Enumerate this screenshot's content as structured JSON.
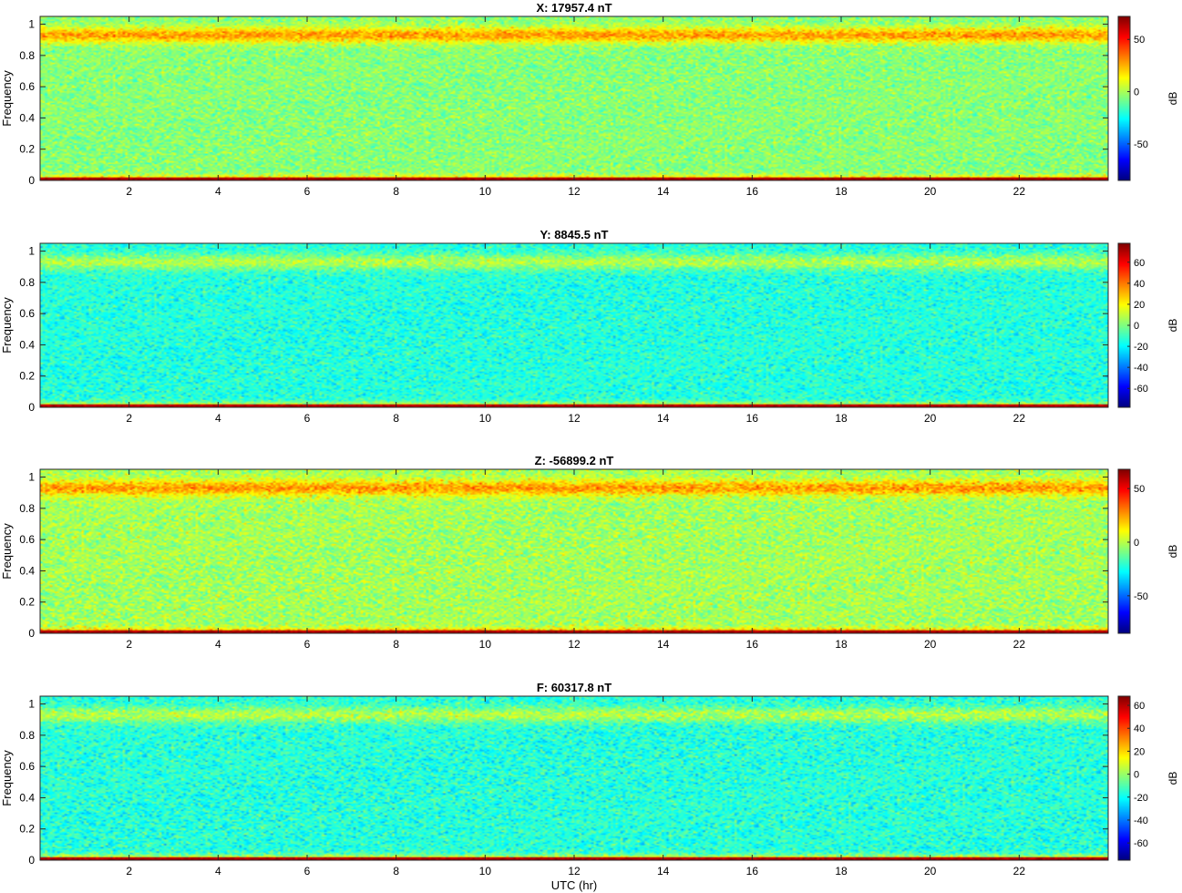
{
  "figure": {
    "xlabel": "UTC (hr)",
    "colormap": "jet",
    "x_ticks": [
      2,
      4,
      6,
      8,
      10,
      12,
      14,
      16,
      18,
      20,
      22
    ]
  },
  "chart_data": [
    {
      "type": "heatmap",
      "title": "X: 17957.4 nT",
      "ylabel": "Frequency",
      "xlim": [
        0,
        24
      ],
      "ylim": [
        0,
        1.05
      ],
      "y_ticks": [
        "0",
        "0.2",
        "0.4",
        "0.6",
        "0.8",
        "1"
      ],
      "colorbar": {
        "label": "dB",
        "range": [
          -85,
          72
        ],
        "ticks": [
          -50,
          0,
          50
        ]
      },
      "levels": {
        "background_db": -5,
        "noise_spread_db": 13,
        "band_0_9_db": 28,
        "dc_line_db": 70,
        "low_freq_db": 30
      }
    },
    {
      "type": "heatmap",
      "title": "Y: 8845.5 nT",
      "ylabel": "Frequency",
      "xlim": [
        0,
        24
      ],
      "ylim": [
        0,
        1.05
      ],
      "y_ticks": [
        "0",
        "0.2",
        "0.4",
        "0.6",
        "0.8",
        "1"
      ],
      "colorbar": {
        "label": "dB",
        "range": [
          -78,
          78
        ],
        "ticks": [
          -60,
          -40,
          -20,
          0,
          20,
          40,
          60
        ]
      },
      "levels": {
        "background_db": -14,
        "noise_spread_db": 13,
        "band_0_9_db": 8,
        "dc_line_db": 74,
        "low_freq_db": 25
      }
    },
    {
      "type": "heatmap",
      "title": "Z: -56899.2 nT",
      "ylabel": "Frequency",
      "xlim": [
        0,
        24
      ],
      "ylim": [
        0,
        1.05
      ],
      "y_ticks": [
        "0",
        "0.2",
        "0.4",
        "0.6",
        "0.8",
        "1"
      ],
      "colorbar": {
        "label": "dB",
        "range": [
          -85,
          68
        ],
        "ticks": [
          -50,
          0,
          50
        ]
      },
      "levels": {
        "background_db": -3,
        "noise_spread_db": 14,
        "band_0_9_db": 26,
        "dc_line_db": 66,
        "low_freq_db": 35
      }
    },
    {
      "type": "heatmap",
      "title": "F: 60317.8 nT",
      "ylabel": "Frequency",
      "xlim": [
        0,
        24
      ],
      "ylim": [
        0,
        1.05
      ],
      "y_ticks": [
        "0",
        "0.2",
        "0.4",
        "0.6",
        "0.8",
        "1"
      ],
      "colorbar": {
        "label": "dB",
        "range": [
          -75,
          68
        ],
        "ticks": [
          -60,
          -40,
          -20,
          0,
          20,
          40,
          60
        ]
      },
      "levels": {
        "background_db": -16,
        "noise_spread_db": 13,
        "band_0_9_db": 4,
        "dc_line_db": 66,
        "low_freq_db": 25
      }
    }
  ]
}
